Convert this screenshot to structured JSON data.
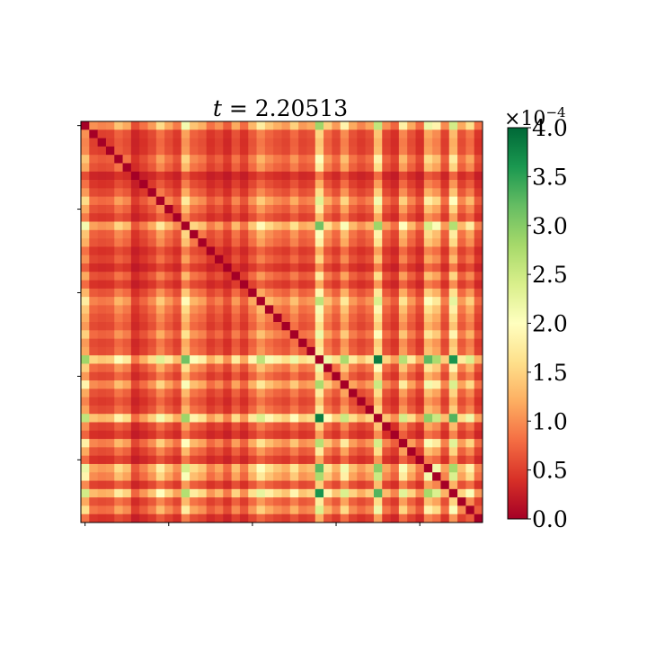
{
  "chart_data": {
    "type": "heatmap",
    "title_prefix": "t",
    "title_value": "2.20513",
    "title": "t = 2.20513",
    "size": 48,
    "diagonal_value": 0,
    "row_col_factors": [
      0.98,
      0.52,
      0.48,
      0.5,
      0.7,
      0.6,
      0.3,
      0.42,
      0.55,
      0.8,
      0.6,
      0.45,
      1.08,
      0.7,
      0.62,
      0.42,
      0.52,
      0.35,
      0.6,
      0.4,
      0.65,
      0.9,
      0.72,
      0.62,
      0.55,
      0.75,
      0.55,
      0.6,
      1.45,
      0.75,
      0.55,
      0.95,
      0.6,
      0.48,
      0.58,
      1.32,
      0.52,
      0.38,
      0.92,
      0.6,
      0.4,
      1.12,
      0.95,
      0.5,
      1.25,
      0.6,
      0.82,
      0.42
    ],
    "rows_top_to_bottom": "index 0 at top",
    "colorbar": {
      "cmap": "RdYlGn",
      "min": 0.0,
      "max": 4.0,
      "ticks": [
        "0.0",
        "0.5",
        "1.0",
        "1.5",
        "2.0",
        "2.5",
        "3.0",
        "3.5",
        "4.0"
      ],
      "exponent_label": "×10",
      "exponent": "−4"
    },
    "colormap_stops": [
      "#a50026",
      "#d73027",
      "#f46d43",
      "#fdae61",
      "#fee08b",
      "#ffffbf",
      "#d9ef8b",
      "#a6d96a",
      "#66bd63",
      "#1a9850",
      "#006837"
    ],
    "axis_ticks": {
      "x": [
        0,
        10,
        20,
        30,
        40
      ],
      "y": [
        0,
        10,
        20,
        30,
        40
      ],
      "labels_shown": false
    },
    "grid": false,
    "legend": "colorbar-right"
  }
}
